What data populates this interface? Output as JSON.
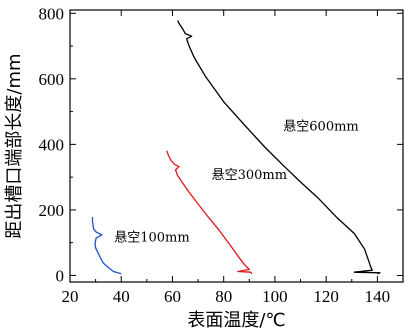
{
  "chart_data": {
    "type": "line",
    "title": "",
    "xlabel": "表面温度/℃",
    "ylabel": "距出槽口端部长度/mm",
    "xlim": [
      20,
      150
    ],
    "ylim": [
      -20,
      810
    ],
    "x_ticks": [
      20,
      40,
      60,
      80,
      100,
      120,
      140
    ],
    "y_ticks": [
      0,
      200,
      400,
      600,
      800
    ],
    "grid": false,
    "series": [
      {
        "name": "悬空100mm",
        "color": "#1f4fd8",
        "points": [
          [
            40,
            5
          ],
          [
            37,
            12
          ],
          [
            35,
            24
          ],
          [
            33,
            38
          ],
          [
            32,
            52
          ],
          [
            31,
            68
          ],
          [
            30,
            84
          ],
          [
            29.8,
            100
          ],
          [
            30.2,
            114
          ],
          [
            32.5,
            124
          ],
          [
            30.2,
            133
          ],
          [
            29.2,
            142
          ],
          [
            29,
            152
          ],
          [
            28.8,
            165
          ],
          [
            28.8,
            178
          ]
        ]
      },
      {
        "name": "悬空300mm",
        "color": "#e0161c",
        "points": [
          [
            91,
            5
          ],
          [
            90.5,
            10
          ],
          [
            85.5,
            12
          ],
          [
            90,
            18
          ],
          [
            88,
            34
          ],
          [
            85.5,
            60
          ],
          [
            82,
            98
          ],
          [
            78,
            140
          ],
          [
            74,
            178
          ],
          [
            70,
            218
          ],
          [
            66.5,
            254
          ],
          [
            64,
            282
          ],
          [
            62,
            305
          ],
          [
            61.2,
            322
          ],
          [
            62.5,
            332
          ],
          [
            61,
            338
          ],
          [
            59.5,
            350
          ],
          [
            58.5,
            365
          ],
          [
            57.8,
            380
          ]
        ]
      },
      {
        "name": "悬空600mm",
        "color": "#000000",
        "points": [
          [
            140,
            5
          ],
          [
            141,
            8
          ],
          [
            131,
            10
          ],
          [
            138,
            16
          ],
          [
            137.5,
            24
          ],
          [
            135,
            80
          ],
          [
            131,
            128
          ],
          [
            124,
            178
          ],
          [
            117,
            235
          ],
          [
            110,
            285
          ],
          [
            104,
            330
          ],
          [
            96,
            392
          ],
          [
            88,
            460
          ],
          [
            80,
            530
          ],
          [
            73,
            606
          ],
          [
            68.5,
            665
          ],
          [
            66.5,
            700
          ],
          [
            65.5,
            722
          ],
          [
            67.5,
            730
          ],
          [
            65,
            738
          ],
          [
            64,
            752
          ],
          [
            62.5,
            770
          ],
          [
            62,
            778
          ]
        ]
      }
    ]
  }
}
